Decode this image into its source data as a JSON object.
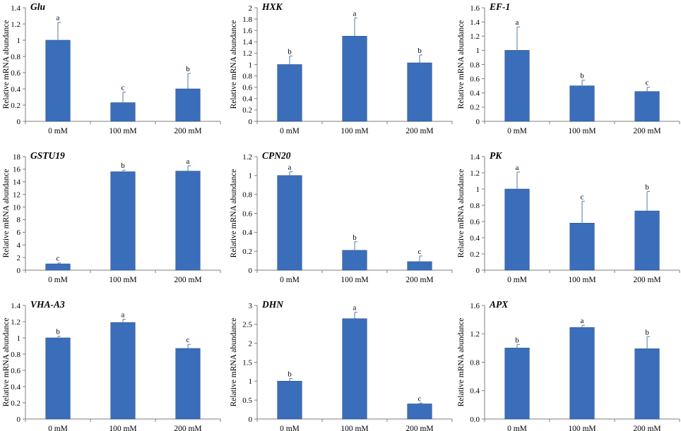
{
  "figure": {
    "bar_color": "#3A6EBB",
    "error_color": "#6F8FB8",
    "axis_color": "#7F7F7F"
  },
  "chart_data": [
    {
      "type": "bar",
      "title": "Glu",
      "ylabel": "Relative mRNA abundance",
      "xlabel": "",
      "categories": [
        "0 mM",
        "100 mM",
        "200 mM"
      ],
      "values": [
        1.0,
        0.23,
        0.4
      ],
      "errors": [
        0.22,
        0.13,
        0.19
      ],
      "letters": [
        "a",
        "c",
        "b"
      ],
      "ylim": [
        0,
        1.4
      ],
      "yticks": [
        0,
        0.2,
        0.4,
        0.6,
        0.8,
        1,
        1.2,
        1.4
      ],
      "ytick_labels": [
        "0",
        "0.2",
        "0.4",
        "0.6",
        "0.8",
        "1",
        "1.2",
        "1.4"
      ]
    },
    {
      "type": "bar",
      "title": "HXK",
      "ylabel": "Relative mRNA abundance",
      "xlabel": "",
      "categories": [
        "0 mM",
        "100 mM",
        "200 mM"
      ],
      "values": [
        1.0,
        1.5,
        1.03
      ],
      "errors": [
        0.15,
        0.32,
        0.14
      ],
      "letters": [
        "b",
        "a",
        "b"
      ],
      "ylim": [
        0,
        2
      ],
      "yticks": [
        0,
        0.2,
        0.4,
        0.6,
        0.8,
        1,
        1.2,
        1.4,
        1.6,
        1.8,
        2
      ],
      "ytick_labels": [
        "0",
        "0.2",
        "0.4",
        "0.6",
        "0.8",
        "1",
        "1.2",
        "1.4",
        "1.6",
        "1.8",
        "2"
      ]
    },
    {
      "type": "bar",
      "title": "EF-1",
      "ylabel": "Relative mRNA abundance",
      "xlabel": "",
      "categories": [
        "0 mM",
        "100 mM",
        "200 mM"
      ],
      "values": [
        1.0,
        0.5,
        0.42
      ],
      "errors": [
        0.33,
        0.08,
        0.06
      ],
      "letters": [
        "a",
        "b",
        "c"
      ],
      "ylim": [
        0,
        1.6
      ],
      "yticks": [
        0,
        0.2,
        0.4,
        0.6,
        0.8,
        1,
        1.2,
        1.4,
        1.6
      ],
      "ytick_labels": [
        "0",
        "0.2",
        "0.4",
        "0.6",
        "0.8",
        "1",
        "1.2",
        "1.4",
        "1.6"
      ]
    },
    {
      "type": "bar",
      "title": "GSTU19",
      "ylabel": "Relative mRNA abundance",
      "xlabel": "",
      "categories": [
        "0 mM",
        "100 mM",
        "200 mM"
      ],
      "values": [
        1.0,
        15.6,
        15.7
      ],
      "errors": [
        0.15,
        0.25,
        0.85
      ],
      "letters": [
        "c",
        "b",
        "a"
      ],
      "ylim": [
        0,
        18
      ],
      "yticks": [
        0,
        2,
        4,
        6,
        8,
        10,
        12,
        14,
        16,
        18
      ],
      "ytick_labels": [
        "0",
        "2",
        "4",
        "6",
        "8",
        "10",
        "12",
        "14",
        "16",
        "18"
      ]
    },
    {
      "type": "bar",
      "title": "CPN20",
      "ylabel": "Relative mRNA abundance",
      "xlabel": "",
      "categories": [
        "0 mM",
        "100 mM",
        "200 mM"
      ],
      "values": [
        1.0,
        0.21,
        0.09
      ],
      "errors": [
        0.04,
        0.09,
        0.06
      ],
      "letters": [
        "a",
        "b",
        "c"
      ],
      "ylim": [
        0,
        1.2
      ],
      "yticks": [
        0,
        0.2,
        0.4,
        0.6,
        0.8,
        1,
        1.2
      ],
      "ytick_labels": [
        "0",
        "0.2",
        "0.4",
        "0.6",
        "0.8",
        "1",
        "1.2"
      ]
    },
    {
      "type": "bar",
      "title": "PK",
      "ylabel": "Relative mRNA abundance",
      "xlabel": "",
      "categories": [
        "0 mM",
        "100 mM",
        "200 mM"
      ],
      "values": [
        1.0,
        0.58,
        0.73
      ],
      "errors": [
        0.21,
        0.27,
        0.24
      ],
      "letters": [
        "a",
        "c",
        "b"
      ],
      "ylim": [
        0,
        1.4
      ],
      "yticks": [
        0,
        0.2,
        0.4,
        0.6,
        0.8,
        1,
        1.2,
        1.4
      ],
      "ytick_labels": [
        "0",
        "0.2",
        "0.4",
        "0.6",
        "0.8",
        "1",
        "1.2",
        "1.4"
      ]
    },
    {
      "type": "bar",
      "title": "VHA-A3",
      "ylabel": "Relative mRNA abundance",
      "xlabel": "",
      "categories": [
        "0 mM",
        "100 mM",
        "200 mM"
      ],
      "values": [
        1.0,
        1.19,
        0.87
      ],
      "errors": [
        0.02,
        0.04,
        0.05
      ],
      "letters": [
        "b",
        "a",
        "c"
      ],
      "ylim": [
        0,
        1.4
      ],
      "yticks": [
        0,
        0.2,
        0.4,
        0.6,
        0.8,
        1,
        1.2,
        1.4
      ],
      "ytick_labels": [
        "0",
        "0.2",
        "0.4",
        "0.6",
        "0.8",
        "1",
        "1.2",
        "1.4"
      ]
    },
    {
      "type": "bar",
      "title": "DHN",
      "ylabel": "Relative mRNA abundance",
      "xlabel": "",
      "categories": [
        "0 mM",
        "100 mM",
        "200 mM"
      ],
      "values": [
        1.0,
        2.65,
        0.4
      ],
      "errors": [
        0.07,
        0.17,
        0.02
      ],
      "letters": [
        "b",
        "a",
        "c"
      ],
      "ylim": [
        0,
        3
      ],
      "yticks": [
        0,
        0.5,
        1,
        1.5,
        2,
        2.5,
        3
      ],
      "ytick_labels": [
        "0",
        "0.5",
        "1",
        "1.5",
        "2",
        "2.5",
        "3"
      ]
    },
    {
      "type": "bar",
      "title": "APX",
      "ylabel": "Relative mRNA abundance",
      "xlabel": "",
      "categories": [
        "0 mM",
        "100 mM",
        "200 mM"
      ],
      "values": [
        1.0,
        1.29,
        0.99
      ],
      "errors": [
        0.05,
        0.03,
        0.17
      ],
      "letters": [
        "b",
        "a",
        "b"
      ],
      "ylim": [
        0,
        1.6
      ],
      "yticks": [
        0,
        0.4,
        0.8,
        1.2,
        1.6
      ],
      "ytick_labels": [
        "0.0",
        "0.4",
        "0.8",
        "1.2",
        "1.6"
      ]
    }
  ]
}
